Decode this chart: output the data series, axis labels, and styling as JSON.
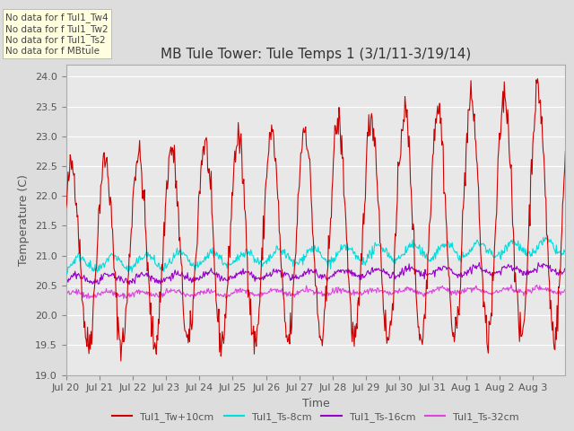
{
  "title": "MB Tule Tower: Tule Temps 1 (3/1/11-3/19/14)",
  "xlabel": "Time",
  "ylabel": "Temperature (C)",
  "ylim": [
    19.0,
    24.2
  ],
  "yticks": [
    19.0,
    19.5,
    20.0,
    20.5,
    21.0,
    21.5,
    22.0,
    22.5,
    23.0,
    23.5,
    24.0
  ],
  "legend_labels": [
    "Tul1_Tw+10cm",
    "Tul1_Ts-8cm",
    "Tul1_Ts-16cm",
    "Tul1_Ts-32cm"
  ],
  "legend_colors": [
    "#cc0000",
    "#00dddd",
    "#9900cc",
    "#dd44dd"
  ],
  "no_data_text": [
    "No data for f Tul1_Tw4",
    "No data for f Tul1_Tw2",
    "No data for f Tul1_Ts2",
    "No data for f MBtule"
  ],
  "bg_color": "#dddddd",
  "plot_bg_color": "#e8e8e8",
  "grid_color": "#ffffff",
  "n_points": 720,
  "title_fontsize": 11,
  "axis_fontsize": 9,
  "tick_fontsize": 8,
  "legend_fontsize": 8
}
